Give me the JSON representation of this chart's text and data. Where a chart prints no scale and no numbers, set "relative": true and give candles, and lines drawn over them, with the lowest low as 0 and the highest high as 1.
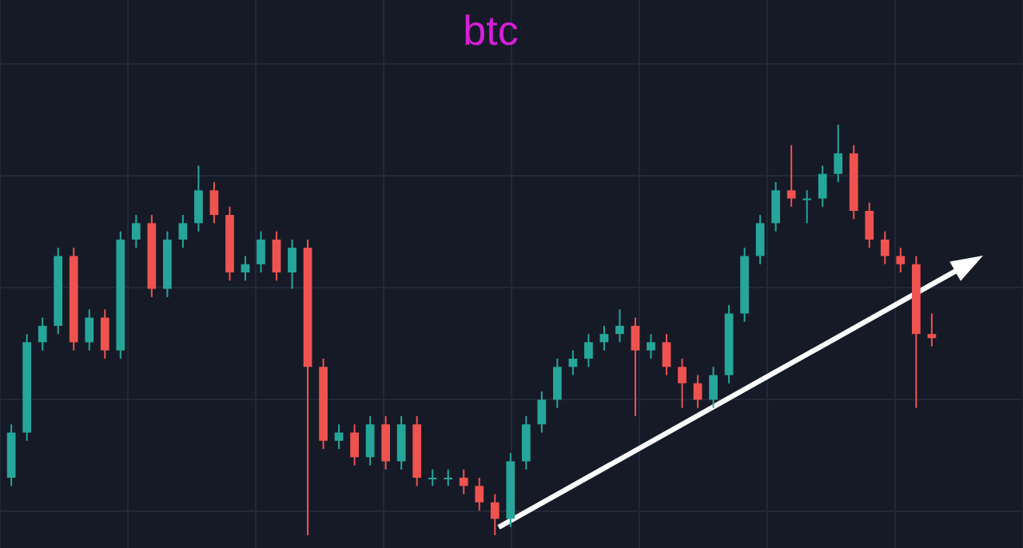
{
  "chart_data": {
    "type": "candlestick",
    "title": "btc",
    "relative": true,
    "categories": [
      null,
      null,
      null,
      null,
      null,
      null,
      null,
      null,
      null,
      null,
      null,
      null,
      null,
      null,
      null,
      null,
      null,
      null,
      null,
      null,
      null,
      null,
      null,
      null,
      null,
      null,
      null,
      null,
      null,
      null,
      null,
      null,
      null,
      null,
      null,
      null,
      null,
      null,
      null,
      null,
      null,
      null,
      null,
      null,
      null,
      null,
      null,
      null,
      null,
      null,
      null,
      null,
      null,
      null,
      null,
      null,
      null,
      null,
      null,
      null
    ],
    "ohlc": [
      [
        0.14,
        0.27,
        0.12,
        0.25
      ],
      [
        0.25,
        0.49,
        0.23,
        0.47
      ],
      [
        0.47,
        0.53,
        0.45,
        0.51
      ],
      [
        0.51,
        0.7,
        0.49,
        0.68
      ],
      [
        0.68,
        0.7,
        0.45,
        0.47
      ],
      [
        0.47,
        0.55,
        0.45,
        0.53
      ],
      [
        0.53,
        0.55,
        0.43,
        0.45
      ],
      [
        0.45,
        0.74,
        0.43,
        0.72
      ],
      [
        0.72,
        0.78,
        0.7,
        0.76
      ],
      [
        0.76,
        0.78,
        0.58,
        0.6
      ],
      [
        0.6,
        0.74,
        0.58,
        0.72
      ],
      [
        0.72,
        0.78,
        0.7,
        0.76
      ],
      [
        0.76,
        0.9,
        0.74,
        0.84
      ],
      [
        0.84,
        0.86,
        0.76,
        0.78
      ],
      [
        0.78,
        0.8,
        0.62,
        0.64
      ],
      [
        0.64,
        0.68,
        0.62,
        0.66
      ],
      [
        0.66,
        0.74,
        0.64,
        0.72
      ],
      [
        0.72,
        0.74,
        0.62,
        0.64
      ],
      [
        0.64,
        0.72,
        0.6,
        0.7
      ],
      [
        0.7,
        0.72,
        0.0,
        0.41
      ],
      [
        0.41,
        0.43,
        0.21,
        0.23
      ],
      [
        0.23,
        0.27,
        0.21,
        0.25
      ],
      [
        0.25,
        0.27,
        0.17,
        0.19
      ],
      [
        0.19,
        0.29,
        0.17,
        0.27
      ],
      [
        0.27,
        0.29,
        0.16,
        0.18
      ],
      [
        0.18,
        0.29,
        0.16,
        0.27
      ],
      [
        0.27,
        0.29,
        0.12,
        0.14
      ],
      [
        0.14,
        0.16,
        0.12,
        0.14
      ],
      [
        0.14,
        0.16,
        0.12,
        0.14
      ],
      [
        0.14,
        0.16,
        0.1,
        0.12
      ],
      [
        0.12,
        0.14,
        0.06,
        0.08
      ],
      [
        0.08,
        0.1,
        0.0,
        0.04
      ],
      [
        0.04,
        0.2,
        0.02,
        0.18
      ],
      [
        0.18,
        0.29,
        0.16,
        0.27
      ],
      [
        0.27,
        0.35,
        0.25,
        0.33
      ],
      [
        0.33,
        0.43,
        0.31,
        0.41
      ],
      [
        0.41,
        0.45,
        0.39,
        0.43
      ],
      [
        0.43,
        0.49,
        0.41,
        0.47
      ],
      [
        0.47,
        0.51,
        0.45,
        0.49
      ],
      [
        0.49,
        0.55,
        0.47,
        0.51
      ],
      [
        0.51,
        0.53,
        0.29,
        0.45
      ],
      [
        0.45,
        0.49,
        0.43,
        0.47
      ],
      [
        0.47,
        0.49,
        0.39,
        0.41
      ],
      [
        0.41,
        0.43,
        0.31,
        0.37
      ],
      [
        0.37,
        0.39,
        0.31,
        0.33
      ],
      [
        0.33,
        0.41,
        0.31,
        0.39
      ],
      [
        0.39,
        0.56,
        0.37,
        0.54
      ],
      [
        0.54,
        0.7,
        0.52,
        0.68
      ],
      [
        0.68,
        0.78,
        0.66,
        0.76
      ],
      [
        0.76,
        0.86,
        0.74,
        0.84
      ],
      [
        0.84,
        0.95,
        0.8,
        0.82
      ],
      [
        0.82,
        0.84,
        0.76,
        0.82
      ],
      [
        0.82,
        0.9,
        0.8,
        0.88
      ],
      [
        0.88,
        1.0,
        0.86,
        0.93
      ],
      [
        0.93,
        0.95,
        0.77,
        0.79
      ],
      [
        0.79,
        0.81,
        0.7,
        0.72
      ],
      [
        0.72,
        0.74,
        0.66,
        0.68
      ],
      [
        0.68,
        0.7,
        0.64,
        0.66
      ],
      [
        0.66,
        0.68,
        0.31,
        0.49
      ],
      [
        0.49,
        0.54,
        0.46,
        0.48
      ]
    ]
  }
}
